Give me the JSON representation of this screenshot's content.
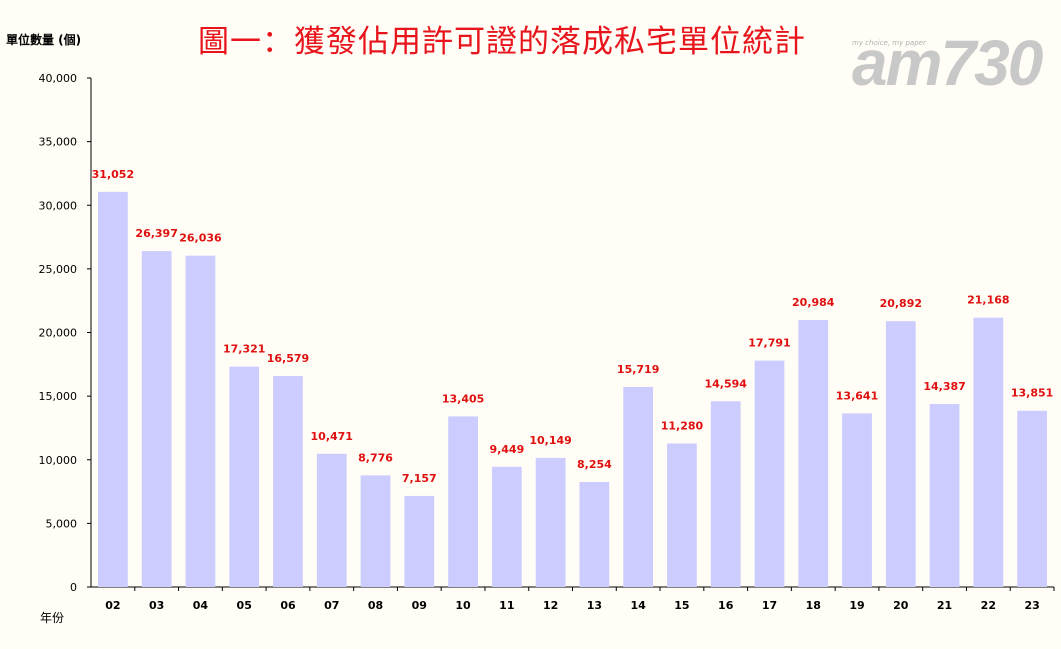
{
  "chart_data": {
    "type": "bar",
    "title": "圖一：獲發佔用許可證的落成私宅單位統計",
    "ylabel": "單位數量 (個)",
    "xlabel": "年份",
    "categories": [
      "02",
      "03",
      "04",
      "05",
      "06",
      "07",
      "08",
      "09",
      "10",
      "11",
      "12",
      "13",
      "14",
      "15",
      "16",
      "17",
      "18",
      "19",
      "20",
      "21",
      "22",
      "23"
    ],
    "values": [
      31052,
      26397,
      26036,
      17321,
      16579,
      10471,
      8776,
      7157,
      13405,
      9449,
      10149,
      8254,
      15719,
      11280,
      14594,
      17791,
      20984,
      13641,
      20892,
      14387,
      21168,
      13851
    ],
    "value_labels": [
      "31,052",
      "26,397",
      "26,036",
      "17,321",
      "16,579",
      "10,471",
      "8,776",
      "7,157",
      "13,405",
      "9,449",
      "10,149",
      "8,254",
      "15,719",
      "11,280",
      "14,594",
      "17,791",
      "20,984",
      "13,641",
      "20,892",
      "14,387",
      "21,168",
      "13,851"
    ],
    "ylim": [
      0,
      40000
    ],
    "yticks": [
      "0",
      "5,000",
      "10,000",
      "15,000",
      "20,000",
      "25,000",
      "30,000",
      "35,000",
      "40,000"
    ],
    "grid": false,
    "colors": {
      "bar": "#ccccff",
      "label": "#e01010",
      "title": "#e8141c"
    }
  },
  "logo": {
    "text": "am730",
    "tagline": "my choice, my paper"
  }
}
